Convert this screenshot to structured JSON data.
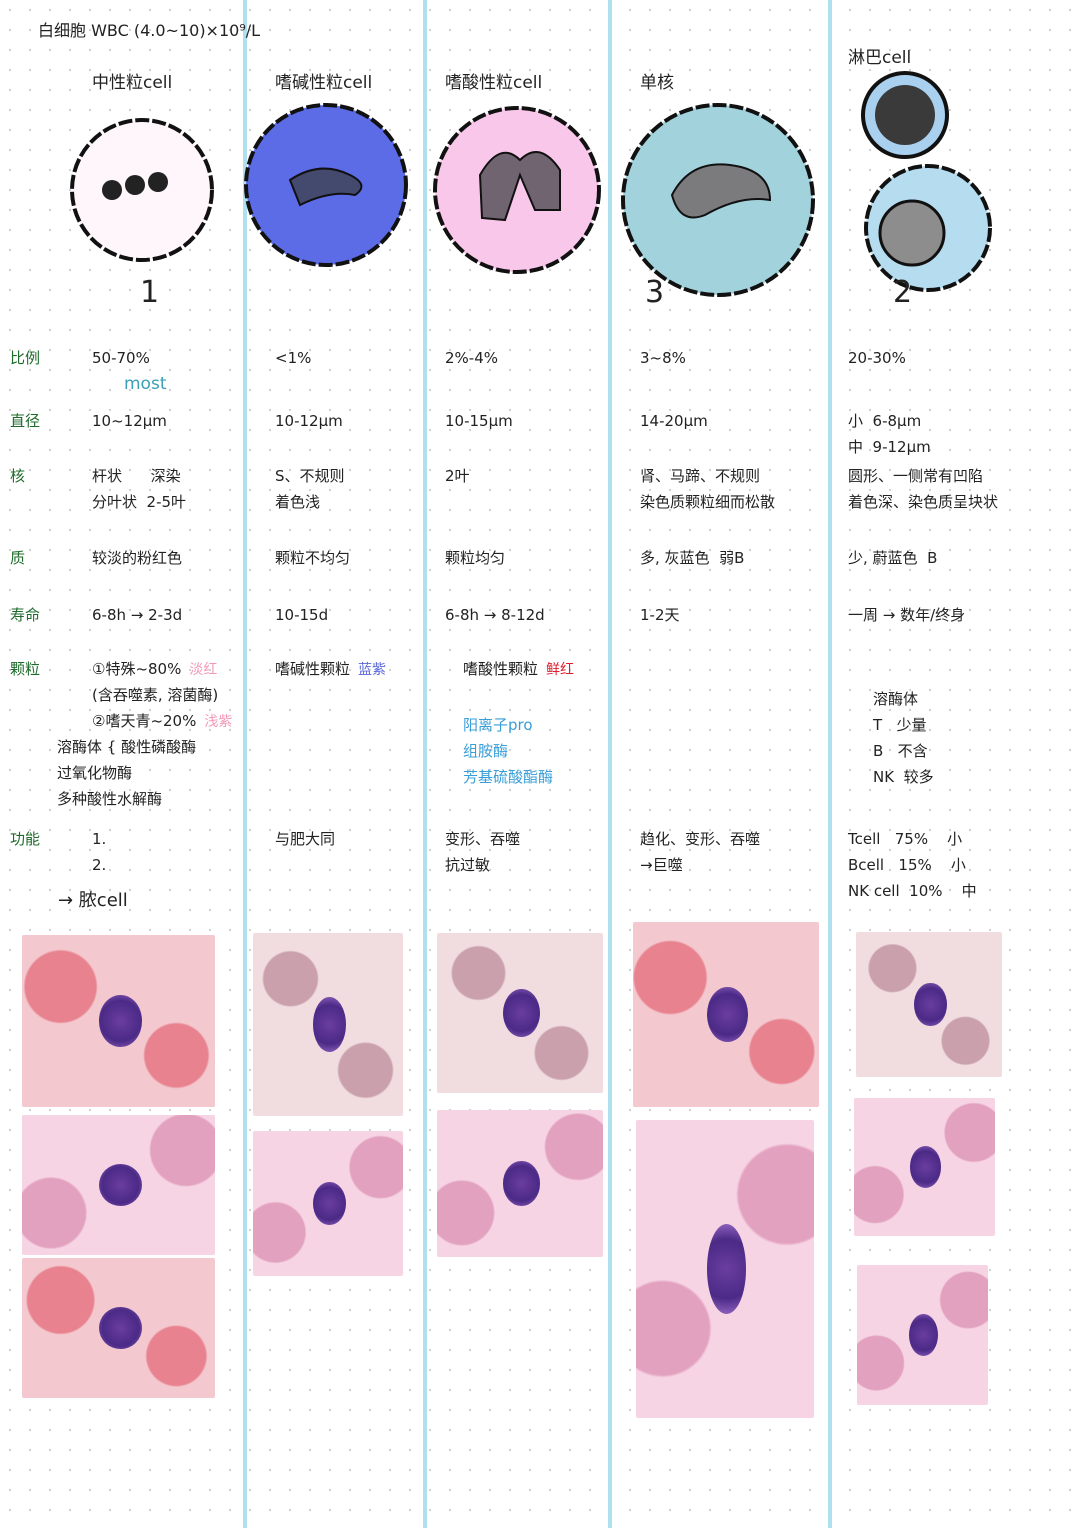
{
  "header": {
    "title": "白细胞 WBC (4.0~10)×10⁹/L"
  },
  "row_labels": [
    "比例",
    "直径",
    "核",
    "质",
    "寿命",
    "颗粒",
    "功能"
  ],
  "columns": [
    {
      "name": "中性粒cell",
      "number": "1",
      "ratio": [
        "50-70%",
        "most"
      ],
      "diameter": [
        "10~12μm"
      ],
      "nucleus": [
        "杆状      深染",
        "分叶状  2-5叶"
      ],
      "cytoplasm": [
        "较淡的粉红色"
      ],
      "lifespan": [
        "6-8h → 2-3d"
      ],
      "granules": [
        [
          "①特殊~80%",
          "淡红"
        ],
        [
          "(含吞噬素, 溶菌酶)"
        ],
        [
          "②嗜天青~20%",
          "浅紫"
        ],
        [
          "溶酶体 { 酸性磷酸酶"
        ],
        [
          "过氧化物酶"
        ],
        [
          "多种酸性水解酶"
        ]
      ],
      "function": [
        "1.",
        "2."
      ],
      "note": "→ 脓cell"
    },
    {
      "name": "嗜碱性粒cell",
      "ratio": [
        "<1%"
      ],
      "diameter": [
        "10-12μm"
      ],
      "nucleus": [
        "S、不规则",
        "着色浅"
      ],
      "cytoplasm": [
        "颗粒不均匀"
      ],
      "lifespan": [
        "10-15d"
      ],
      "granules": [
        [
          "嗜碱性颗粒",
          "蓝紫"
        ]
      ],
      "function": [
        "与肥大同"
      ]
    },
    {
      "name": "嗜酸性粒cell",
      "ratio": [
        "2%-4%"
      ],
      "diameter": [
        "10-15μm"
      ],
      "nucleus": [
        "2叶"
      ],
      "cytoplasm": [
        "颗粒均匀"
      ],
      "lifespan": [
        "6-8h → 8-12d"
      ],
      "granules": [
        [
          "嗜酸性颗粒",
          "鲜红"
        ],
        [
          "阳离子pro"
        ],
        [
          "组胺酶"
        ],
        [
          "芳基硫酸酯酶"
        ]
      ],
      "function": [
        "变形、吞噬",
        "抗过敏"
      ]
    },
    {
      "name": "单核",
      "number": "3",
      "ratio": [
        "3~8%"
      ],
      "diameter": [
        "14-20μm"
      ],
      "nucleus": [
        "肾、马蹄、不规则",
        "染色质颗粒细而松散"
      ],
      "cytoplasm": [
        "多, 灰蓝色  弱B"
      ],
      "lifespan": [
        "1-2天"
      ],
      "function": [
        "趋化、变形、吞噬",
        "→巨噬"
      ]
    },
    {
      "name": "淋巴cell",
      "number": "2",
      "ratio": [
        "20-30%"
      ],
      "diameter": [
        "小  6-8μm",
        "中  9-12μm"
      ],
      "nucleus": [
        "圆形、一侧常有凹陷",
        "着色深、染色质呈块状"
      ],
      "cytoplasm": [
        "少, 蔚蓝色  B"
      ],
      "lifespan": [
        "一周 → 数年/终身"
      ],
      "granules": [
        [
          "溶酶体"
        ],
        [
          "T   少量"
        ],
        [
          "B   不含"
        ],
        [
          "NK  较多"
        ]
      ],
      "function": [
        "Tcell   75%    小",
        "Bcell   15%    小",
        "NK cell  10%    中"
      ]
    }
  ]
}
